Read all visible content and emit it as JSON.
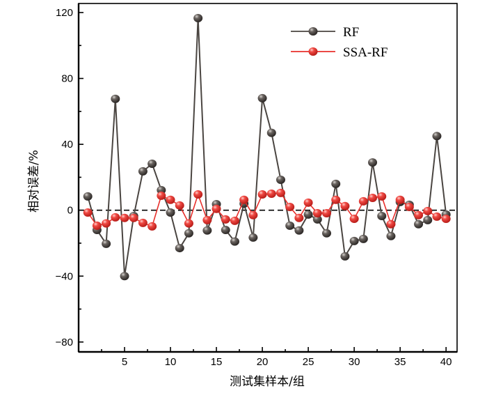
{
  "chart_data": {
    "type": "line",
    "title": "",
    "xlabel": "测试集样本/组",
    "ylabel": "相对误差/%",
    "xlim": [
      0,
      41.2
    ],
    "ylim": [
      -86,
      125.5
    ],
    "xticks": [
      5,
      10,
      15,
      20,
      25,
      30,
      35,
      40
    ],
    "yticks": [
      -80,
      -40,
      0,
      40,
      80,
      120
    ],
    "ytick_labels": [
      "−80",
      "−40",
      "0",
      "40",
      "80",
      "120"
    ],
    "grid": false,
    "reference_line": 0,
    "legend_position": "top-right",
    "x": [
      1,
      2,
      3,
      4,
      5,
      6,
      7,
      8,
      9,
      10,
      11,
      12,
      13,
      14,
      15,
      16,
      17,
      18,
      19,
      20,
      21,
      22,
      23,
      24,
      25,
      26,
      27,
      28,
      29,
      30,
      31,
      32,
      33,
      34,
      35,
      36,
      37,
      38,
      39,
      40
    ],
    "series": [
      {
        "name": "RF",
        "color": "#4a4541",
        "values": [
          8.4,
          -12,
          -20.4,
          67.6,
          -40,
          -3.5,
          23.6,
          28.2,
          12.2,
          -1.4,
          -23,
          -14,
          116.6,
          -12.3,
          3.7,
          -12,
          -19,
          4,
          -16.6,
          68,
          47,
          18.5,
          -9.4,
          -12.3,
          -2.6,
          -5.6,
          -14,
          16,
          -28,
          -18.7,
          -17.4,
          29,
          -3.5,
          -15.7,
          5,
          3.3,
          -8.5,
          -6,
          45,
          -2.6
        ]
      },
      {
        "name": "SSA-RF",
        "color": "#e8302c",
        "values": [
          -1.4,
          -9.4,
          -8,
          -4.3,
          -4.7,
          -4.7,
          -7.7,
          -9.8,
          8.8,
          6.3,
          2.9,
          -8,
          9.6,
          -6,
          0.8,
          -5.6,
          -6.4,
          6.3,
          -3,
          9.6,
          10,
          10.5,
          2,
          -4.7,
          4.6,
          -1.8,
          -1.8,
          6.3,
          2.5,
          -5.2,
          5.4,
          7.5,
          8.4,
          -8.5,
          6.3,
          2,
          -3,
          -0.5,
          -3.9,
          -5.2
        ]
      }
    ]
  }
}
